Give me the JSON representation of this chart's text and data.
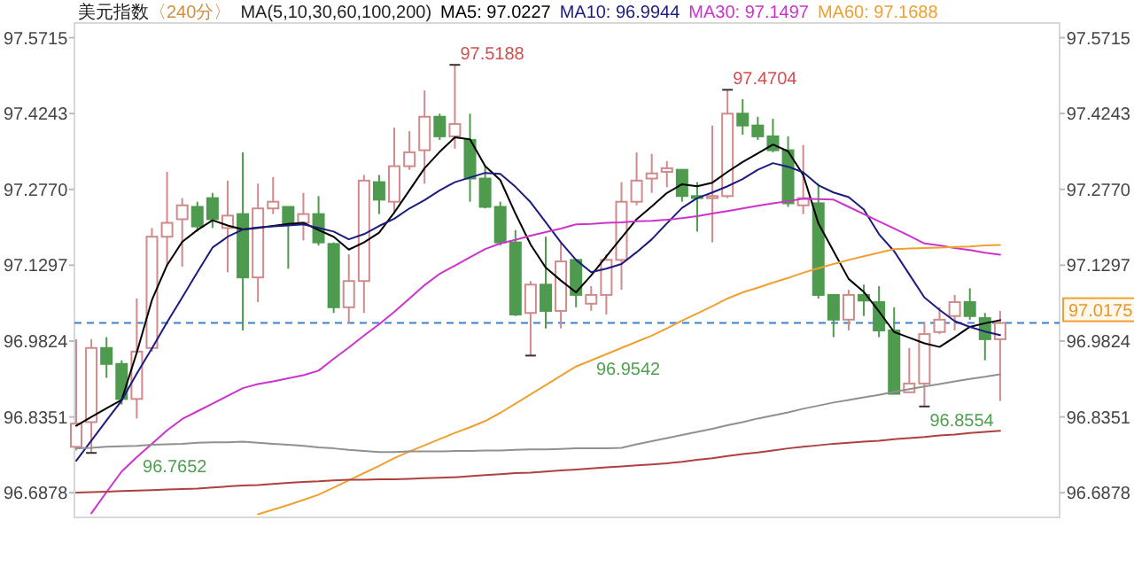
{
  "chart_data": {
    "type": "candlestick",
    "title": "美元指数",
    "subtitle": "〈240分〉",
    "categories": [
      null,
      null,
      null,
      null,
      null,
      null,
      null,
      null,
      null,
      null,
      null,
      null,
      null,
      null,
      null,
      null,
      null,
      null,
      null,
      null,
      null,
      null,
      null,
      null,
      null,
      null,
      null,
      null,
      null,
      null,
      null,
      null,
      null,
      null,
      null,
      null,
      null,
      null,
      null,
      null,
      null,
      null,
      null,
      null,
      null,
      null,
      null,
      null,
      null,
      null,
      null,
      null,
      null,
      null,
      null,
      null,
      null,
      null,
      null,
      null,
      null,
      null
    ],
    "ohlc": [
      [
        96.777,
        96.986,
        96.77,
        96.822
      ],
      [
        96.825,
        96.986,
        96.7652,
        96.969
      ],
      [
        96.969,
        96.99,
        96.911,
        96.938
      ],
      [
        96.938,
        96.945,
        96.859,
        96.87
      ],
      [
        96.87,
        97.065,
        96.832,
        96.962
      ],
      [
        96.969,
        97.202,
        96.962,
        97.185
      ],
      [
        97.185,
        97.311,
        97.127,
        97.212
      ],
      [
        97.219,
        97.26,
        97.127,
        97.246
      ],
      [
        97.243,
        97.253,
        97.195,
        97.205
      ],
      [
        97.26,
        97.27,
        97.202,
        97.219
      ],
      [
        97.202,
        97.294,
        97.116,
        97.226
      ],
      [
        97.229,
        97.349,
        97.003,
        97.106
      ],
      [
        97.106,
        97.288,
        97.058,
        97.24
      ],
      [
        97.24,
        97.301,
        97.229,
        97.253
      ],
      [
        97.243,
        97.243,
        97.123,
        97.209
      ],
      [
        97.212,
        97.27,
        97.178,
        97.229
      ],
      [
        97.229,
        97.264,
        97.168,
        97.174
      ],
      [
        97.171,
        97.174,
        97.037,
        97.048
      ],
      [
        97.048,
        97.151,
        97.017,
        97.099
      ],
      [
        97.099,
        97.305,
        97.037,
        97.294
      ],
      [
        97.291,
        97.305,
        97.229,
        97.257
      ],
      [
        97.253,
        97.397,
        97.229,
        97.322
      ],
      [
        97.322,
        97.39,
        97.315,
        97.349
      ],
      [
        97.353,
        97.469,
        97.288,
        97.418
      ],
      [
        97.418,
        97.424,
        97.373,
        97.38
      ],
      [
        97.38,
        97.5188,
        97.356,
        97.404
      ],
      [
        97.373,
        97.424,
        97.253,
        97.298
      ],
      [
        97.298,
        97.322,
        97.24,
        97.243
      ],
      [
        97.243,
        97.253,
        97.168,
        97.174
      ],
      [
        97.174,
        97.198,
        97.031,
        97.034
      ],
      [
        97.037,
        97.099,
        96.9542,
        97.092
      ],
      [
        97.092,
        97.185,
        97.007,
        97.041
      ],
      [
        97.041,
        97.174,
        97.007,
        97.137
      ],
      [
        97.14,
        97.14,
        97.048,
        97.072
      ],
      [
        97.055,
        97.089,
        97.041,
        97.072
      ],
      [
        97.072,
        97.151,
        97.034,
        97.14
      ],
      [
        97.14,
        97.291,
        97.082,
        97.253
      ],
      [
        97.253,
        97.349,
        97.246,
        97.294
      ],
      [
        97.298,
        97.346,
        97.27,
        97.308
      ],
      [
        97.311,
        97.332,
        97.281,
        97.318
      ],
      [
        97.315,
        97.315,
        97.253,
        97.264
      ],
      [
        97.264,
        97.291,
        97.195,
        97.26
      ],
      [
        97.26,
        97.401,
        97.174,
        97.264
      ],
      [
        97.264,
        97.4704,
        97.26,
        97.424
      ],
      [
        97.424,
        97.452,
        97.383,
        97.401
      ],
      [
        97.401,
        97.418,
        97.373,
        97.38
      ],
      [
        97.38,
        97.414,
        97.349,
        97.353
      ],
      [
        97.353,
        97.38,
        97.243,
        97.25
      ],
      [
        97.246,
        97.363,
        97.229,
        97.26
      ],
      [
        97.25,
        97.288,
        97.065,
        97.072
      ],
      [
        97.072,
        97.072,
        96.99,
        97.024
      ],
      [
        97.024,
        97.082,
        97.003,
        97.072
      ],
      [
        97.072,
        97.092,
        97.031,
        97.061
      ],
      [
        97.058,
        97.089,
        96.99,
        97.003
      ],
      [
        97.003,
        97.048,
        96.88,
        96.88
      ],
      [
        96.883,
        96.969,
        96.883,
        96.9
      ],
      [
        96.9,
        97.02,
        96.8554,
        96.996
      ],
      [
        97.0,
        97.048,
        96.996,
        97.024
      ],
      [
        97.031,
        97.072,
        97.003,
        97.058
      ],
      [
        97.058,
        97.085,
        97.024,
        97.031
      ],
      [
        97.027,
        97.037,
        96.945,
        96.986
      ],
      [
        96.986,
        97.041,
        96.866,
        97.0175
      ]
    ],
    "ylim": [
      96.64,
      97.6
    ],
    "yticks": [
      96.6878,
      96.8351,
      96.9824,
      97.1297,
      {
        "value": 97.277,
        "label": "97.2770"
      },
      97.4243,
      97.5715
    ],
    "y2lim": [
      96.64,
      97.6
    ],
    "y2ticks": [
      96.6878,
      96.8351,
      96.9824,
      97.1297,
      {
        "value": 97.277,
        "label": "97.2770"
      },
      97.4243,
      97.5715
    ],
    "series": [
      {
        "name": "MA5: 97.0227",
        "color": "#000000",
        "type": "line",
        "values": [
          96.818,
          96.835,
          96.852,
          96.868,
          96.96,
          97.062,
          97.13,
          97.175,
          97.198,
          97.217,
          97.207,
          97.199,
          97.202,
          97.206,
          97.21,
          97.212,
          97.198,
          97.185,
          97.16,
          97.174,
          97.193,
          97.232,
          97.275,
          97.318,
          97.35,
          97.378,
          97.374,
          97.322,
          97.295,
          97.23,
          97.17,
          97.125,
          97.1,
          97.077,
          97.11,
          97.147,
          97.183,
          97.219,
          97.244,
          97.27,
          97.287,
          97.283,
          97.29,
          97.311,
          97.33,
          97.347,
          97.364,
          97.351,
          97.305,
          97.211,
          97.157,
          97.103,
          97.078,
          97.04,
          97.0,
          96.989,
          96.978,
          96.971,
          96.99,
          97.01,
          97.017,
          97.023
        ]
      },
      {
        "name": "MA10: 96.9944",
        "color": "#1c1c80",
        "type": "line",
        "values": [
          96.75,
          96.789,
          96.828,
          96.867,
          96.919,
          96.968,
          97.019,
          97.067,
          97.116,
          97.164,
          97.185,
          97.199,
          97.203,
          97.205,
          97.207,
          97.209,
          97.202,
          97.195,
          97.18,
          97.19,
          97.206,
          97.22,
          97.24,
          97.256,
          97.275,
          97.291,
          97.3,
          97.309,
          97.307,
          97.282,
          97.252,
          97.213,
          97.174,
          97.14,
          97.116,
          97.123,
          97.132,
          97.155,
          97.18,
          97.211,
          97.241,
          97.26,
          97.271,
          97.283,
          97.297,
          97.315,
          97.328,
          97.321,
          97.31,
          97.285,
          97.271,
          97.262,
          97.238,
          97.19,
          97.157,
          97.112,
          97.067,
          97.043,
          97.021,
          97.01,
          97.001,
          96.994
        ]
      },
      {
        "name": "MA30: 97.1497",
        "color": "#cc33cc",
        "type": "line",
        "values": [
          null,
          96.648,
          96.689,
          96.729,
          96.757,
          96.783,
          96.809,
          96.831,
          96.846,
          96.861,
          96.876,
          96.891,
          96.899,
          96.904,
          96.91,
          96.916,
          96.925,
          96.948,
          96.97,
          96.993,
          97.015,
          97.039,
          97.065,
          97.091,
          97.113,
          97.129,
          97.145,
          97.161,
          97.172,
          97.179,
          97.187,
          97.194,
          97.201,
          97.209,
          97.21,
          97.212,
          97.213,
          97.215,
          97.216,
          97.218,
          97.221,
          97.225,
          97.23,
          97.235,
          97.24,
          97.245,
          97.25,
          97.254,
          97.259,
          97.258,
          97.257,
          97.243,
          97.229,
          97.215,
          97.201,
          97.187,
          97.172,
          97.168,
          97.163,
          97.159,
          97.154,
          97.15
        ]
      },
      {
        "name": "MA60: 97.1688",
        "color": "#f0a030",
        "type": "line",
        "values": [
          null,
          null,
          null,
          null,
          null,
          null,
          null,
          null,
          null,
          null,
          null,
          null,
          96.646,
          96.655,
          96.664,
          96.674,
          96.684,
          96.698,
          96.712,
          96.726,
          96.74,
          96.755,
          96.768,
          96.78,
          96.792,
          96.804,
          96.815,
          96.827,
          96.843,
          96.861,
          96.879,
          96.897,
          96.915,
          96.933,
          96.945,
          96.957,
          96.969,
          96.981,
          96.993,
          97.007,
          97.022,
          97.036,
          97.05,
          97.065,
          97.077,
          97.086,
          97.096,
          97.105,
          97.115,
          97.124,
          97.132,
          97.14,
          97.147,
          97.154,
          97.161,
          97.162,
          97.163,
          97.164,
          97.165,
          97.166,
          97.168,
          97.169
        ]
      },
      {
        "color": "#909090",
        "type": "line",
        "values": [
          96.774,
          96.775,
          96.777,
          96.778,
          96.779,
          96.781,
          96.782,
          96.783,
          96.785,
          96.786,
          96.786,
          96.787,
          96.785,
          96.783,
          96.781,
          96.779,
          96.776,
          96.774,
          96.771,
          96.769,
          96.767,
          96.767,
          96.768,
          96.768,
          96.768,
          96.769,
          96.769,
          96.77,
          96.77,
          96.771,
          96.772,
          96.772,
          96.773,
          96.774,
          96.774,
          96.774,
          96.775,
          96.782,
          96.788,
          96.794,
          96.8,
          96.806,
          96.812,
          96.819,
          96.825,
          96.832,
          96.838,
          96.844,
          96.851,
          96.857,
          96.863,
          96.868,
          96.873,
          96.878,
          96.884,
          96.889,
          96.894,
          96.899,
          96.904,
          96.909,
          96.913,
          96.918
        ]
      },
      {
        "color": "#b04040",
        "type": "line",
        "values": [
          96.688,
          96.689,
          96.69,
          96.691,
          96.692,
          96.693,
          96.694,
          96.695,
          96.696,
          96.698,
          96.7,
          96.702,
          96.703,
          96.705,
          96.707,
          96.709,
          96.71,
          96.712,
          96.713,
          96.713,
          96.714,
          96.714,
          96.715,
          96.716,
          96.717,
          96.718,
          96.72,
          96.722,
          96.724,
          96.726,
          96.727,
          96.729,
          96.731,
          96.733,
          96.735,
          96.737,
          96.739,
          96.741,
          96.743,
          96.745,
          96.748,
          96.752,
          96.755,
          96.759,
          96.763,
          96.766,
          96.77,
          96.774,
          96.777,
          96.78,
          96.783,
          96.785,
          96.787,
          96.789,
          96.792,
          96.794,
          96.796,
          96.799,
          96.801,
          96.804,
          96.806,
          96.808
        ]
      }
    ],
    "ref_lines": [
      {
        "axis": "y2",
        "value": 97.0175,
        "label": "97.0175",
        "color": "#3a7fd0",
        "line_style": "dashed"
      }
    ],
    "annotations": [
      "MA(5,10,30,60,100,200)",
      "97.5188",
      "97.4704",
      "96.9542",
      "96.8554",
      "96.7652"
    ],
    "legend": "top",
    "grid": false
  }
}
